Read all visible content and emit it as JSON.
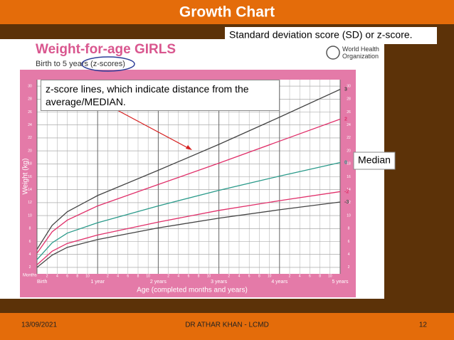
{
  "slide": {
    "title": "Growth Chart",
    "callout_sd": "Standard deviation score (SD) or z-score.",
    "callout_zscore": "z-score lines, which indicate distance from the average/MEDIAN.",
    "callout_median": "Median",
    "footer_date": "13/09/2021",
    "footer_author": "DR ATHAR KHAN - LCMD",
    "footer_page": "12"
  },
  "chart_data": {
    "type": "line",
    "title": "Weight-for-age GIRLS",
    "subtitle": "Birth to 5 years (z-scores)",
    "organization": "World Health Organization",
    "y_label": "Weight (kg)",
    "x_label": "Age (completed months and years)",
    "months_label": "Months",
    "x": [
      0,
      3,
      6,
      12,
      24,
      36,
      48,
      60
    ],
    "series": [
      {
        "name": "3",
        "color": "#444444",
        "values": [
          4.8,
          8.5,
          10.6,
          13.1,
          17.0,
          21.0,
          25.2,
          29.5
        ]
      },
      {
        "name": "2",
        "color": "#e0306a",
        "values": [
          4.2,
          7.5,
          9.3,
          11.5,
          14.8,
          18.1,
          21.5,
          24.9
        ]
      },
      {
        "name": "0",
        "color": "#2a9a8a",
        "values": [
          3.2,
          5.8,
          7.3,
          8.9,
          11.5,
          13.9,
          16.1,
          18.2
        ]
      },
      {
        "name": "-2",
        "color": "#e0306a",
        "values": [
          2.4,
          4.5,
          5.7,
          7.0,
          9.0,
          10.8,
          12.3,
          13.7
        ]
      },
      {
        "name": "-3",
        "color": "#444444",
        "values": [
          2.0,
          3.9,
          5.1,
          6.3,
          8.1,
          9.6,
          10.9,
          12.1
        ]
      }
    ],
    "xlim": [
      0,
      60
    ],
    "ylim": [
      1,
      31
    ],
    "yticks": [
      2,
      4,
      6,
      8,
      10,
      12,
      14,
      16,
      18,
      20,
      22,
      24,
      26,
      28,
      30
    ],
    "xticks": [
      {
        "value": 0,
        "label": "Birth"
      },
      {
        "value": 12,
        "label": "1 year"
      },
      {
        "value": 24,
        "label": "2 years"
      },
      {
        "value": 36,
        "label": "3 years"
      },
      {
        "value": 48,
        "label": "4 years"
      },
      {
        "value": 60,
        "label": "5 years"
      }
    ],
    "xticks_months": [
      2,
      4,
      6,
      8,
      10,
      {
        "value": 14,
        "label": "2"
      },
      {
        "value": 16,
        "label": "4"
      },
      {
        "value": 18,
        "label": "6"
      },
      {
        "value": 20,
        "label": "8"
      },
      {
        "value": 22,
        "label": "10"
      },
      {
        "value": 26,
        "label": "2"
      },
      {
        "value": 28,
        "label": "4"
      },
      {
        "value": 30,
        "label": "6"
      },
      {
        "value": 32,
        "label": "8"
      },
      {
        "value": 34,
        "label": "10"
      },
      {
        "value": 38,
        "label": "2"
      },
      {
        "value": 40,
        "label": "4"
      },
      {
        "value": 42,
        "label": "6"
      },
      {
        "value": 44,
        "label": "8"
      },
      {
        "value": 46,
        "label": "10"
      },
      {
        "value": 50,
        "label": "2"
      },
      {
        "value": 52,
        "label": "4"
      },
      {
        "value": 54,
        "label": "6"
      },
      {
        "value": 56,
        "label": "8"
      },
      {
        "value": 58,
        "label": "10"
      }
    ],
    "grid": true
  }
}
